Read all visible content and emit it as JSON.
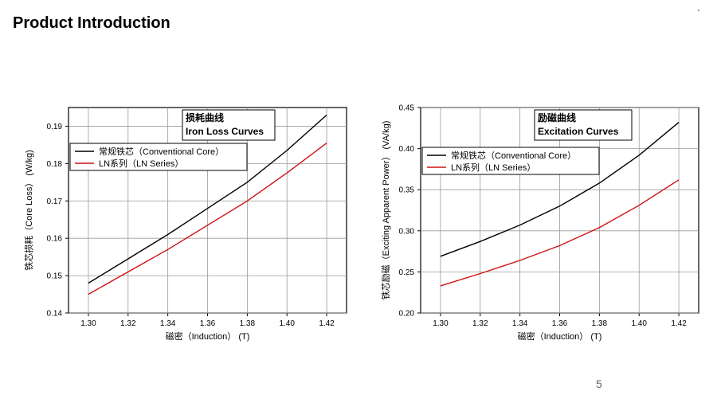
{
  "slide": {
    "title": "Product Introduction",
    "page_number": "5"
  },
  "chart_data": [
    {
      "type": "line",
      "title_cn": "损耗曲线",
      "title": "Iron Loss Curves",
      "xlabel": "磁密（Induction） (T)",
      "ylabel": "铁芯损耗（Core Loss） (W/kg)",
      "xlim": [
        1.29,
        1.43
      ],
      "ylim": [
        0.14,
        0.195
      ],
      "xticks": [
        "1.30",
        "1.32",
        "1.34",
        "1.36",
        "1.38",
        "1.40",
        "1.42"
      ],
      "yticks": [
        "0.14",
        "0.15",
        "0.16",
        "0.17",
        "0.18",
        "0.19"
      ],
      "grid": true,
      "legend_position": "upper-left",
      "series": [
        {
          "name": "常规铁芯（Conventional Core）",
          "color": "#000000",
          "x": [
            1.3,
            1.32,
            1.34,
            1.36,
            1.38,
            1.4,
            1.42
          ],
          "y": [
            0.148,
            0.1545,
            0.161,
            0.168,
            0.175,
            0.1835,
            0.193
          ]
        },
        {
          "name": "LN系列（LN Series）",
          "color": "#d01010",
          "x": [
            1.3,
            1.32,
            1.34,
            1.36,
            1.38,
            1.4,
            1.42
          ],
          "y": [
            0.145,
            0.151,
            0.157,
            0.1635,
            0.17,
            0.1775,
            0.1855
          ]
        }
      ]
    },
    {
      "type": "line",
      "title_cn": "励磁曲线",
      "title": "Excitation Curves",
      "xlabel": "磁密（Induction） (T)",
      "ylabel": "铁芯励磁（Exciting Apparent Power） (VA/kg)",
      "xlim": [
        1.29,
        1.43
      ],
      "ylim": [
        0.2,
        0.45
      ],
      "xticks": [
        "1.30",
        "1.32",
        "1.34",
        "1.36",
        "1.38",
        "1.40",
        "1.42"
      ],
      "yticks": [
        "0.20",
        "0.25",
        "0.30",
        "0.35",
        "0.40",
        "0.45"
      ],
      "grid": true,
      "legend_position": "upper-left",
      "series": [
        {
          "name": "常规铁芯（Conventional Core）",
          "color": "#000000",
          "x": [
            1.3,
            1.32,
            1.34,
            1.36,
            1.38,
            1.4,
            1.42
          ],
          "y": [
            0.269,
            0.287,
            0.307,
            0.33,
            0.358,
            0.392,
            0.432
          ]
        },
        {
          "name": "LN系列（LN Series）",
          "color": "#d01010",
          "x": [
            1.3,
            1.32,
            1.34,
            1.36,
            1.38,
            1.4,
            1.42
          ],
          "y": [
            0.233,
            0.248,
            0.264,
            0.282,
            0.304,
            0.331,
            0.362
          ]
        }
      ]
    }
  ]
}
